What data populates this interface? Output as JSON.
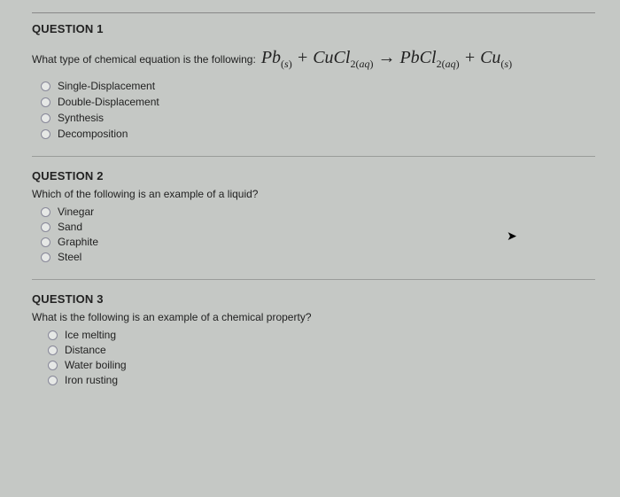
{
  "q1": {
    "title": "QUESTION 1",
    "prompt": "What type of chemical equation is the following:",
    "options": [
      "Single-Displacement",
      "Double-Displacement",
      "Synthesis",
      "Decomposition"
    ]
  },
  "q2": {
    "title": "QUESTION 2",
    "prompt": "Which of the following is an example of a liquid?",
    "options": [
      "Vinegar",
      "Sand",
      "Graphite",
      "Steel"
    ]
  },
  "q3": {
    "title": "QUESTION 3",
    "prompt": "What is the following is an example of a chemical property?",
    "options": [
      "Ice melting",
      "Distance",
      "Water boiling",
      "Iron rusting"
    ]
  },
  "equation_parts": {
    "pb": "Pb",
    "pb_sub": "(s)",
    "plus1": " + ",
    "cucl": "CuCl",
    "cucl_sub": "2(aq)",
    "arrow": " → ",
    "pbcl": "PbCl",
    "pbcl_sub": "2(aq)",
    "plus2": " + ",
    "cu": "Cu",
    "cu_sub": "(s)"
  }
}
